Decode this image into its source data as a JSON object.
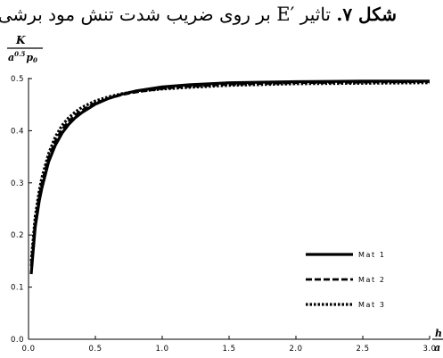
{
  "caption": {
    "prefix": "شکل ۷.",
    "text_before": "تاثیر",
    "symbol": "E′",
    "text_after": "بر روی ضریب شدت تنش مود برشی"
  },
  "chart_data": {
    "type": "line",
    "ylabel_num": "K",
    "ylabel_den": "a",
    "ylabel_den_exp": "0.5",
    "ylabel_den_p": "p",
    "ylabel_den_p_sub": "0",
    "xlabel_num": "h",
    "xlabel_den": "a",
    "xlim": [
      0,
      3.0
    ],
    "ylim": [
      0,
      0.5
    ],
    "x_ticks": [
      "0.0",
      "0.5",
      "1.0",
      "1.5",
      "2.0",
      "2.5",
      "3.0"
    ],
    "y_ticks": [
      "0.0",
      "0.1",
      "0.2",
      "0.3",
      "0.4",
      "0.5"
    ],
    "legend_position": "bottom-right",
    "grid": false,
    "series": [
      {
        "name": "Mat 1",
        "style": "solid",
        "x": [
          0.02,
          0.05,
          0.08,
          0.1,
          0.15,
          0.2,
          0.25,
          0.3,
          0.35,
          0.4,
          0.5,
          0.6,
          0.7,
          0.8,
          1.0,
          1.2,
          1.5,
          2.0,
          2.5,
          3.0
        ],
        "y": [
          0.125,
          0.215,
          0.265,
          0.29,
          0.34,
          0.372,
          0.395,
          0.412,
          0.425,
          0.435,
          0.451,
          0.462,
          0.47,
          0.476,
          0.484,
          0.488,
          0.492,
          0.494,
          0.495,
          0.495
        ]
      },
      {
        "name": "Mat 2",
        "style": "dashed",
        "x": [
          0.02,
          0.05,
          0.08,
          0.1,
          0.15,
          0.2,
          0.25,
          0.3,
          0.35,
          0.4,
          0.5,
          0.6,
          0.7,
          0.8,
          1.0,
          1.2,
          1.5,
          2.0,
          2.5,
          3.0
        ],
        "y": [
          0.14,
          0.225,
          0.275,
          0.3,
          0.348,
          0.38,
          0.402,
          0.418,
          0.43,
          0.439,
          0.453,
          0.462,
          0.469,
          0.474,
          0.481,
          0.485,
          0.489,
          0.492,
          0.493,
          0.494
        ]
      },
      {
        "name": "Mat 3",
        "style": "dotted",
        "x": [
          0.02,
          0.05,
          0.08,
          0.1,
          0.15,
          0.2,
          0.25,
          0.3,
          0.35,
          0.4,
          0.5,
          0.6,
          0.7,
          0.8,
          1.0,
          1.2,
          1.5,
          2.0,
          2.5,
          3.0
        ],
        "y": [
          0.15,
          0.235,
          0.285,
          0.31,
          0.356,
          0.388,
          0.41,
          0.425,
          0.436,
          0.445,
          0.457,
          0.465,
          0.471,
          0.475,
          0.48,
          0.483,
          0.487,
          0.49,
          0.491,
          0.492
        ]
      }
    ]
  }
}
